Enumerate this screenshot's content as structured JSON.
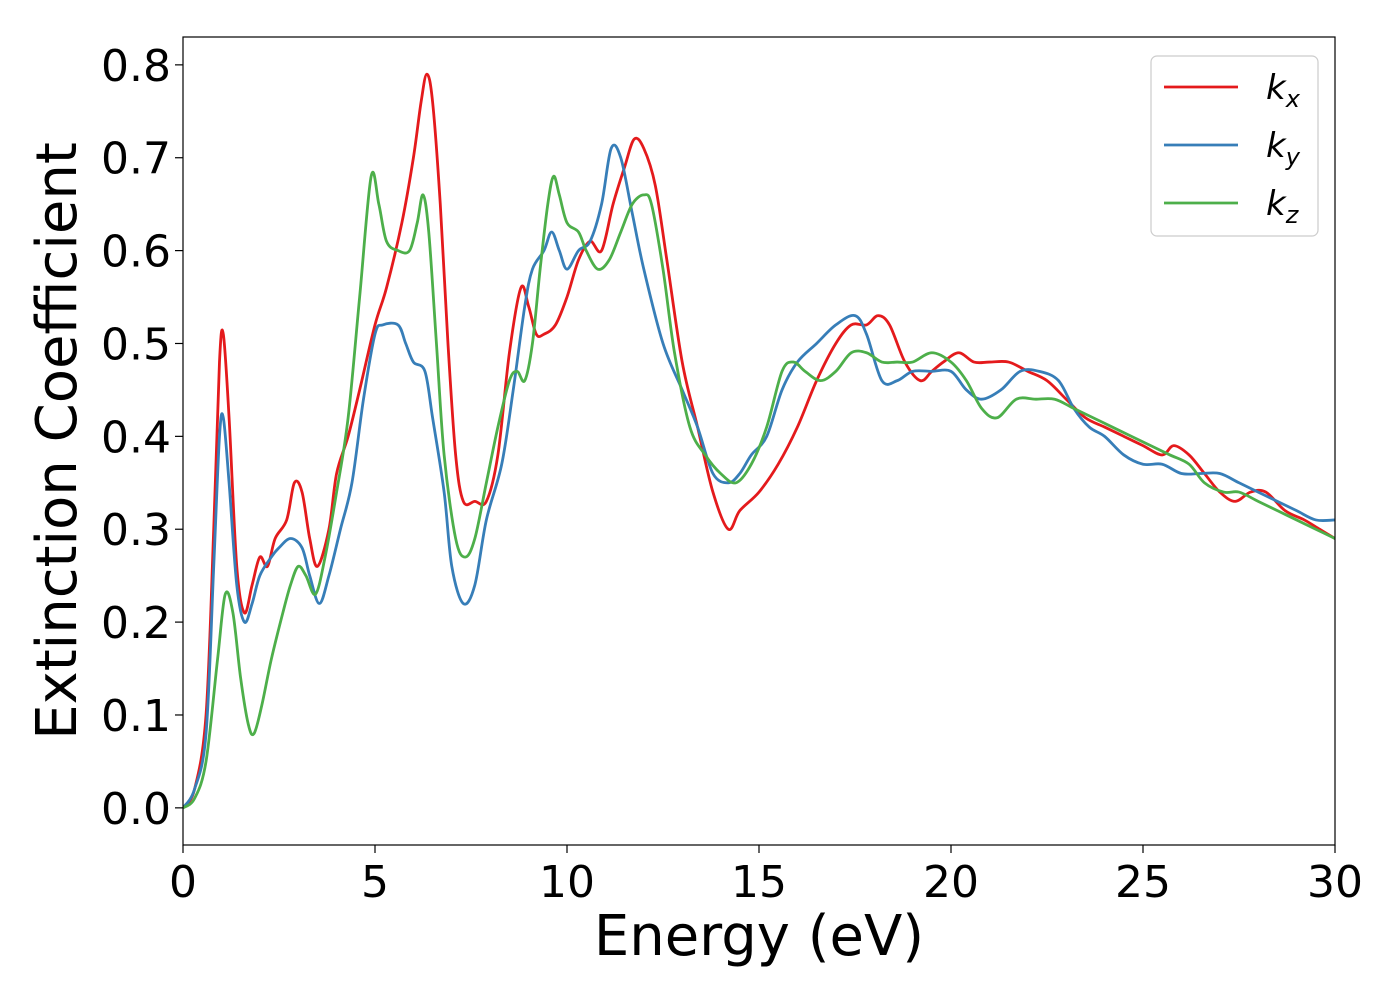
{
  "chart_data": {
    "type": "line",
    "title": "",
    "xlabel": "Energy (eV)",
    "ylabel": "Extinction Coefficient",
    "xlim": [
      0,
      30
    ],
    "ylim": [
      -0.04,
      0.83
    ],
    "x_ticks": [
      0,
      5,
      10,
      15,
      20,
      25,
      30
    ],
    "x_tick_labels": [
      "0",
      "5",
      "10",
      "15",
      "20",
      "25",
      "30"
    ],
    "y_ticks": [
      0.0,
      0.1,
      0.2,
      0.3,
      0.4,
      0.5,
      0.6,
      0.7,
      0.8
    ],
    "y_tick_labels": [
      "0.0",
      "0.1",
      "0.2",
      "0.3",
      "0.4",
      "0.5",
      "0.6",
      "0.7",
      "0.8"
    ],
    "grid": false,
    "legend_position": "top-right",
    "series": [
      {
        "name": "kx",
        "label_base": "k",
        "label_sub": "x",
        "color": "#e41a1c",
        "points": [
          [
            0,
            0.0
          ],
          [
            0.3,
            0.02
          ],
          [
            0.6,
            0.1
          ],
          [
            0.8,
            0.3
          ],
          [
            0.95,
            0.48
          ],
          [
            1.05,
            0.51
          ],
          [
            1.2,
            0.42
          ],
          [
            1.4,
            0.26
          ],
          [
            1.6,
            0.21
          ],
          [
            1.8,
            0.24
          ],
          [
            2.0,
            0.27
          ],
          [
            2.2,
            0.26
          ],
          [
            2.4,
            0.29
          ],
          [
            2.7,
            0.31
          ],
          [
            2.9,
            0.35
          ],
          [
            3.1,
            0.34
          ],
          [
            3.3,
            0.29
          ],
          [
            3.5,
            0.26
          ],
          [
            3.8,
            0.3
          ],
          [
            4.0,
            0.36
          ],
          [
            4.3,
            0.4
          ],
          [
            4.6,
            0.45
          ],
          [
            5.0,
            0.52
          ],
          [
            5.3,
            0.56
          ],
          [
            5.7,
            0.63
          ],
          [
            6.0,
            0.7
          ],
          [
            6.2,
            0.76
          ],
          [
            6.35,
            0.79
          ],
          [
            6.5,
            0.76
          ],
          [
            6.7,
            0.65
          ],
          [
            6.9,
            0.5
          ],
          [
            7.1,
            0.38
          ],
          [
            7.3,
            0.33
          ],
          [
            7.6,
            0.33
          ],
          [
            7.9,
            0.33
          ],
          [
            8.2,
            0.38
          ],
          [
            8.5,
            0.49
          ],
          [
            8.8,
            0.56
          ],
          [
            9.0,
            0.54
          ],
          [
            9.2,
            0.51
          ],
          [
            9.4,
            0.51
          ],
          [
            9.7,
            0.52
          ],
          [
            10.0,
            0.55
          ],
          [
            10.3,
            0.59
          ],
          [
            10.6,
            0.61
          ],
          [
            10.9,
            0.6
          ],
          [
            11.2,
            0.65
          ],
          [
            11.5,
            0.69
          ],
          [
            11.75,
            0.72
          ],
          [
            12.0,
            0.71
          ],
          [
            12.3,
            0.67
          ],
          [
            12.6,
            0.59
          ],
          [
            13.0,
            0.48
          ],
          [
            13.4,
            0.41
          ],
          [
            13.8,
            0.34
          ],
          [
            14.2,
            0.3
          ],
          [
            14.5,
            0.32
          ],
          [
            15.0,
            0.34
          ],
          [
            15.5,
            0.37
          ],
          [
            16.0,
            0.41
          ],
          [
            16.5,
            0.46
          ],
          [
            17.0,
            0.5
          ],
          [
            17.4,
            0.52
          ],
          [
            17.8,
            0.52
          ],
          [
            18.1,
            0.53
          ],
          [
            18.4,
            0.52
          ],
          [
            18.8,
            0.48
          ],
          [
            19.2,
            0.46
          ],
          [
            19.5,
            0.47
          ],
          [
            19.8,
            0.48
          ],
          [
            20.2,
            0.49
          ],
          [
            20.6,
            0.48
          ],
          [
            21.0,
            0.48
          ],
          [
            21.5,
            0.48
          ],
          [
            22.0,
            0.47
          ],
          [
            22.5,
            0.46
          ],
          [
            23.0,
            0.44
          ],
          [
            23.5,
            0.42
          ],
          [
            24.0,
            0.41
          ],
          [
            24.5,
            0.4
          ],
          [
            25.0,
            0.39
          ],
          [
            25.5,
            0.38
          ],
          [
            25.8,
            0.39
          ],
          [
            26.2,
            0.38
          ],
          [
            26.6,
            0.36
          ],
          [
            27.0,
            0.34
          ],
          [
            27.4,
            0.33
          ],
          [
            27.8,
            0.34
          ],
          [
            28.2,
            0.34
          ],
          [
            28.7,
            0.32
          ],
          [
            29.2,
            0.31
          ],
          [
            29.6,
            0.3
          ],
          [
            30.0,
            0.29
          ]
        ]
      },
      {
        "name": "ky",
        "label_base": "k",
        "label_sub": "y",
        "color": "#377eb8",
        "points": [
          [
            0,
            0.0
          ],
          [
            0.3,
            0.02
          ],
          [
            0.6,
            0.08
          ],
          [
            0.8,
            0.26
          ],
          [
            0.95,
            0.4
          ],
          [
            1.05,
            0.42
          ],
          [
            1.2,
            0.35
          ],
          [
            1.4,
            0.24
          ],
          [
            1.6,
            0.2
          ],
          [
            1.8,
            0.22
          ],
          [
            2.0,
            0.25
          ],
          [
            2.3,
            0.27
          ],
          [
            2.5,
            0.28
          ],
          [
            2.8,
            0.29
          ],
          [
            3.1,
            0.28
          ],
          [
            3.3,
            0.25
          ],
          [
            3.55,
            0.22
          ],
          [
            3.8,
            0.25
          ],
          [
            4.1,
            0.3
          ],
          [
            4.4,
            0.35
          ],
          [
            4.7,
            0.44
          ],
          [
            5.0,
            0.51
          ],
          [
            5.2,
            0.52
          ],
          [
            5.6,
            0.52
          ],
          [
            5.8,
            0.5
          ],
          [
            6.0,
            0.48
          ],
          [
            6.3,
            0.47
          ],
          [
            6.5,
            0.42
          ],
          [
            6.8,
            0.34
          ],
          [
            7.0,
            0.26
          ],
          [
            7.3,
            0.22
          ],
          [
            7.6,
            0.24
          ],
          [
            7.9,
            0.31
          ],
          [
            8.3,
            0.37
          ],
          [
            8.6,
            0.45
          ],
          [
            8.9,
            0.54
          ],
          [
            9.1,
            0.58
          ],
          [
            9.4,
            0.6
          ],
          [
            9.6,
            0.62
          ],
          [
            9.8,
            0.6
          ],
          [
            10.0,
            0.58
          ],
          [
            10.3,
            0.6
          ],
          [
            10.6,
            0.61
          ],
          [
            10.9,
            0.65
          ],
          [
            11.15,
            0.71
          ],
          [
            11.4,
            0.7
          ],
          [
            11.7,
            0.64
          ],
          [
            12.0,
            0.58
          ],
          [
            12.5,
            0.5
          ],
          [
            13.0,
            0.45
          ],
          [
            13.4,
            0.41
          ],
          [
            13.8,
            0.36
          ],
          [
            14.2,
            0.35
          ],
          [
            14.5,
            0.36
          ],
          [
            14.8,
            0.38
          ],
          [
            15.2,
            0.4
          ],
          [
            15.6,
            0.45
          ],
          [
            16.0,
            0.48
          ],
          [
            16.5,
            0.5
          ],
          [
            17.0,
            0.52
          ],
          [
            17.5,
            0.53
          ],
          [
            17.8,
            0.51
          ],
          [
            18.2,
            0.46
          ],
          [
            18.6,
            0.46
          ],
          [
            19.0,
            0.47
          ],
          [
            19.5,
            0.47
          ],
          [
            20.0,
            0.47
          ],
          [
            20.4,
            0.45
          ],
          [
            20.8,
            0.44
          ],
          [
            21.3,
            0.45
          ],
          [
            21.8,
            0.47
          ],
          [
            22.3,
            0.47
          ],
          [
            22.8,
            0.46
          ],
          [
            23.2,
            0.43
          ],
          [
            23.6,
            0.41
          ],
          [
            24.0,
            0.4
          ],
          [
            24.5,
            0.38
          ],
          [
            25.0,
            0.37
          ],
          [
            25.5,
            0.37
          ],
          [
            26.0,
            0.36
          ],
          [
            26.5,
            0.36
          ],
          [
            27.0,
            0.36
          ],
          [
            27.5,
            0.35
          ],
          [
            28.0,
            0.34
          ],
          [
            28.5,
            0.33
          ],
          [
            29.0,
            0.32
          ],
          [
            29.5,
            0.31
          ],
          [
            30.0,
            0.31
          ]
        ]
      },
      {
        "name": "kz",
        "label_base": "k",
        "label_sub": "z",
        "color": "#4daf4a",
        "points": [
          [
            0,
            0.0
          ],
          [
            0.3,
            0.01
          ],
          [
            0.6,
            0.05
          ],
          [
            0.9,
            0.16
          ],
          [
            1.1,
            0.23
          ],
          [
            1.3,
            0.21
          ],
          [
            1.5,
            0.14
          ],
          [
            1.7,
            0.09
          ],
          [
            1.85,
            0.08
          ],
          [
            2.05,
            0.11
          ],
          [
            2.3,
            0.16
          ],
          [
            2.6,
            0.21
          ],
          [
            2.8,
            0.24
          ],
          [
            3.0,
            0.26
          ],
          [
            3.2,
            0.25
          ],
          [
            3.45,
            0.23
          ],
          [
            3.7,
            0.27
          ],
          [
            4.0,
            0.34
          ],
          [
            4.3,
            0.42
          ],
          [
            4.6,
            0.55
          ],
          [
            4.9,
            0.68
          ],
          [
            5.1,
            0.65
          ],
          [
            5.3,
            0.61
          ],
          [
            5.6,
            0.6
          ],
          [
            5.9,
            0.6
          ],
          [
            6.1,
            0.63
          ],
          [
            6.25,
            0.66
          ],
          [
            6.4,
            0.62
          ],
          [
            6.6,
            0.5
          ],
          [
            6.8,
            0.38
          ],
          [
            7.1,
            0.29
          ],
          [
            7.35,
            0.27
          ],
          [
            7.6,
            0.29
          ],
          [
            7.9,
            0.35
          ],
          [
            8.2,
            0.41
          ],
          [
            8.5,
            0.46
          ],
          [
            8.7,
            0.47
          ],
          [
            8.9,
            0.46
          ],
          [
            9.1,
            0.5
          ],
          [
            9.3,
            0.58
          ],
          [
            9.5,
            0.65
          ],
          [
            9.65,
            0.68
          ],
          [
            9.8,
            0.66
          ],
          [
            10.0,
            0.63
          ],
          [
            10.3,
            0.62
          ],
          [
            10.5,
            0.6
          ],
          [
            10.8,
            0.58
          ],
          [
            11.1,
            0.59
          ],
          [
            11.4,
            0.62
          ],
          [
            11.7,
            0.65
          ],
          [
            12.0,
            0.66
          ],
          [
            12.2,
            0.65
          ],
          [
            12.5,
            0.58
          ],
          [
            12.8,
            0.49
          ],
          [
            13.2,
            0.41
          ],
          [
            13.6,
            0.38
          ],
          [
            14.0,
            0.36
          ],
          [
            14.4,
            0.35
          ],
          [
            14.8,
            0.37
          ],
          [
            15.2,
            0.41
          ],
          [
            15.6,
            0.47
          ],
          [
            15.9,
            0.48
          ],
          [
            16.2,
            0.47
          ],
          [
            16.6,
            0.46
          ],
          [
            17.0,
            0.47
          ],
          [
            17.4,
            0.49
          ],
          [
            17.8,
            0.49
          ],
          [
            18.2,
            0.48
          ],
          [
            18.6,
            0.48
          ],
          [
            19.0,
            0.48
          ],
          [
            19.5,
            0.49
          ],
          [
            20.0,
            0.48
          ],
          [
            20.4,
            0.46
          ],
          [
            20.8,
            0.43
          ],
          [
            21.2,
            0.42
          ],
          [
            21.7,
            0.44
          ],
          [
            22.2,
            0.44
          ],
          [
            22.7,
            0.44
          ],
          [
            23.2,
            0.43
          ],
          [
            23.7,
            0.42
          ],
          [
            24.2,
            0.41
          ],
          [
            24.7,
            0.4
          ],
          [
            25.2,
            0.39
          ],
          [
            25.7,
            0.38
          ],
          [
            26.2,
            0.37
          ],
          [
            26.6,
            0.35
          ],
          [
            27.1,
            0.34
          ],
          [
            27.5,
            0.34
          ],
          [
            28.0,
            0.33
          ],
          [
            28.5,
            0.32
          ],
          [
            29.0,
            0.31
          ],
          [
            29.5,
            0.3
          ],
          [
            30.0,
            0.29
          ]
        ]
      }
    ]
  }
}
